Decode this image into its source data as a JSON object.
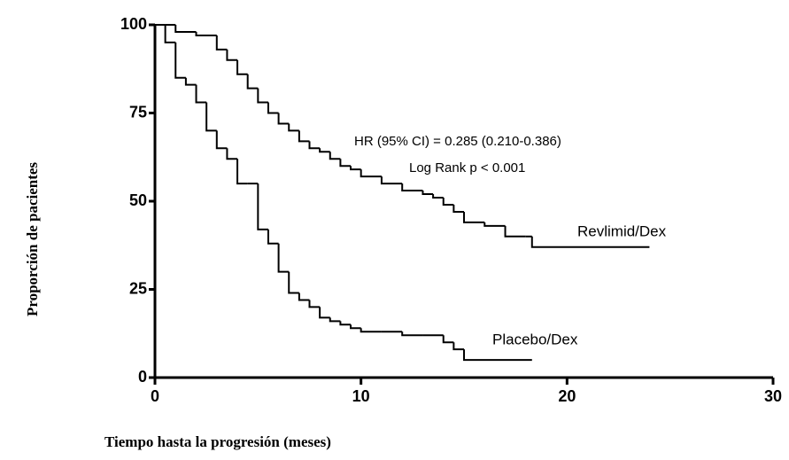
{
  "chart_data": {
    "type": "step",
    "y_label": "Proporción de pacientes",
    "x_label": "Tiempo hasta la progresión (meses)",
    "annotations": [
      "HR (95% CI) = 0.285 (0.210-0.386)",
      "Log Rank p < 0.001"
    ],
    "xlim": [
      0,
      30
    ],
    "ylim": [
      0,
      100
    ],
    "xticks": [
      0,
      10,
      20,
      30
    ],
    "yticks": [
      0,
      25,
      50,
      75,
      100
    ],
    "series": [
      {
        "name": "Revlimid/Dex",
        "color": "#000000",
        "x": [
          0,
          0.5,
          1,
          2,
          3,
          3.5,
          4,
          4.5,
          5,
          5.5,
          6,
          6.5,
          7,
          7.5,
          8,
          8.5,
          9,
          9.5,
          10,
          11,
          12,
          13,
          13.5,
          14,
          14.5,
          15,
          16,
          17,
          18,
          18.3,
          24
        ],
        "values": [
          100,
          100,
          98,
          97,
          93,
          90,
          86,
          82,
          78,
          75,
          72,
          70,
          67,
          65,
          64,
          62,
          60,
          59,
          57,
          55,
          53,
          52,
          51,
          49,
          47,
          44,
          43,
          40,
          40,
          37,
          37
        ]
      },
      {
        "name": "Placebo/Dex",
        "color": "#000000",
        "x": [
          0,
          0.5,
          1,
          1.5,
          2,
          2.5,
          3,
          3.5,
          4,
          4.5,
          5,
          5.5,
          6,
          6.5,
          7,
          7.5,
          8,
          8.5,
          9,
          9.5,
          10,
          11,
          12,
          13,
          14,
          14.5,
          15,
          18.3
        ],
        "values": [
          100,
          95,
          85,
          83,
          78,
          70,
          65,
          62,
          55,
          55,
          42,
          38,
          30,
          24,
          22,
          20,
          17,
          16,
          15,
          14,
          13,
          13,
          12,
          12,
          10,
          8,
          5,
          5
        ]
      }
    ]
  }
}
